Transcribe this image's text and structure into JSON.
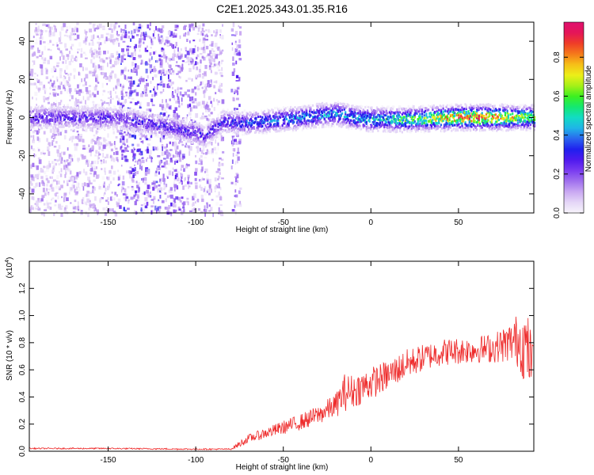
{
  "figure_title": "C2E1.2025.343.01.35.R16",
  "colors": {
    "snr_line": "#ee2b2b",
    "colormap": [
      "#f7f4fb",
      "#e4d6f7",
      "#c9a8f2",
      "#a070ee",
      "#7a3cf0",
      "#4f1aee",
      "#2020ee",
      "#2a66ee",
      "#1fb4e8",
      "#12dcc4",
      "#14e870",
      "#3cf020",
      "#a6f018",
      "#ecef18",
      "#f6bf18",
      "#f57a1a",
      "#ef3d28",
      "#e41558",
      "#e0106e"
    ]
  },
  "chart_data": [
    {
      "type": "heatmap",
      "title": "C2E1.2025.343.01.35.R16",
      "xlabel": "Height of straight line (km)",
      "ylabel": "Frequency (Hz)",
      "xlim": [
        -195,
        93
      ],
      "ylim": [
        -50,
        50
      ],
      "x_ticks": [
        -150,
        -100,
        -50,
        0,
        50
      ],
      "y_ticks": [
        -40,
        -20,
        0,
        20,
        40
      ],
      "x_tick_labels": [
        "-150",
        "-100",
        "-50",
        "0",
        "50"
      ],
      "y_tick_labels": [
        "-40",
        "-20",
        "0",
        "20",
        "40"
      ],
      "colorbar": {
        "label": "Normalized spectral amplitude",
        "range": [
          0,
          0.98
        ],
        "ticks": [
          0.0,
          0.2,
          0.4,
          0.6,
          0.8
        ],
        "tick_labels": [
          "0.0",
          "0.2",
          "0.4",
          "0.6",
          "0.8"
        ]
      },
      "grid": false,
      "ridge": {
        "frequency_center_hz": [
          [
            -195,
            0
          ],
          [
            -145,
            0
          ],
          [
            -100,
            -8
          ],
          [
            -95,
            -10
          ],
          [
            -85,
            -2
          ],
          [
            -75,
            -3
          ],
          [
            -60,
            -2
          ],
          [
            -40,
            0
          ],
          [
            -30,
            1
          ],
          [
            -20,
            2
          ],
          [
            -10,
            0
          ],
          [
            0,
            -1
          ],
          [
            20,
            -1
          ],
          [
            50,
            0
          ],
          [
            93,
            0
          ]
        ],
        "peak_amplitude": [
          [
            -195,
            0.3
          ],
          [
            -145,
            0.3
          ],
          [
            -100,
            0.3
          ],
          [
            -80,
            0.35
          ],
          [
            -60,
            0.42
          ],
          [
            -40,
            0.45
          ],
          [
            -20,
            0.5
          ],
          [
            0,
            0.5
          ],
          [
            20,
            0.62
          ],
          [
            40,
            0.78
          ],
          [
            60,
            0.95
          ],
          [
            80,
            0.78
          ],
          [
            93,
            0.62
          ]
        ]
      },
      "noise_regions": [
        {
          "x": [
            -195,
            -145
          ],
          "amplitude": 0.12
        },
        {
          "x": [
            -145,
            -120
          ],
          "amplitude": 0.22
        },
        {
          "x": [
            -120,
            -100
          ],
          "amplitude": 0.18
        },
        {
          "x": [
            -100,
            -85
          ],
          "amplitude": 0.14
        },
        {
          "x": [
            -80,
            -75
          ],
          "amplitude": 0.2
        }
      ]
    },
    {
      "type": "line",
      "xlabel": "Height of straight line (km)",
      "ylabel": "SNR (10 * v/v)",
      "y_scale_label": "(x10",
      "y_scale_exponent": "4",
      "xlim": [
        -195,
        93
      ],
      "ylim": [
        0,
        1.4
      ],
      "x_ticks": [
        -150,
        -100,
        -50,
        0,
        50
      ],
      "y_ticks": [
        0.0,
        0.2,
        0.4,
        0.6,
        0.8,
        1.0,
        1.2
      ],
      "x_tick_labels": [
        "-150",
        "-100",
        "-50",
        "0",
        "50"
      ],
      "y_tick_labels": [
        "0.0",
        "0.2",
        "0.4",
        "0.6",
        "0.8",
        "1.0",
        "1.2"
      ],
      "grid": false,
      "series": [
        {
          "x": [
            -195,
            -150,
            -100,
            -80,
            -75,
            -70,
            -60,
            -50,
            -40,
            -30,
            -20,
            -15,
            -10,
            0,
            10,
            20,
            30,
            40,
            50,
            60,
            70,
            80,
            85,
            89,
            93
          ],
          "y": [
            0.02,
            0.02,
            0.015,
            0.015,
            0.05,
            0.09,
            0.13,
            0.17,
            0.21,
            0.26,
            0.33,
            0.42,
            0.43,
            0.49,
            0.55,
            0.63,
            0.68,
            0.72,
            0.73,
            0.74,
            0.75,
            0.79,
            0.8,
            0.72,
            0.62
          ],
          "noise_amplitude": [
            0.01,
            0.01,
            0.01,
            0.01,
            0.05,
            0.06,
            0.08,
            0.1,
            0.12,
            0.14,
            0.18,
            0.28,
            0.25,
            0.24,
            0.22,
            0.22,
            0.2,
            0.2,
            0.2,
            0.2,
            0.22,
            0.3,
            0.45,
            0.6,
            0.3
          ]
        }
      ]
    }
  ]
}
